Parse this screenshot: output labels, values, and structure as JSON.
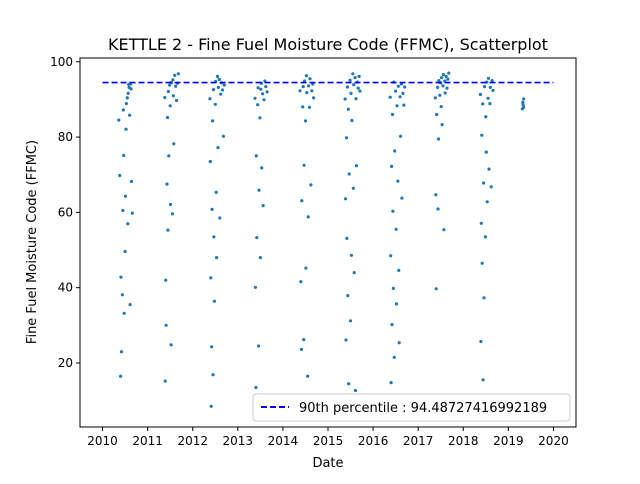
{
  "chart_data": {
    "type": "scatter",
    "title": "KETTLE 2 - Fine Fuel Moisture Code (FFMC), Scatterplot",
    "xlabel": "Date",
    "ylabel": "Fine Fuel Moisture Code (FFMC)",
    "xlim": [
      2009.5,
      2020.5
    ],
    "ylim": [
      3,
      101
    ],
    "x_ticks": [
      2010,
      2011,
      2012,
      2013,
      2014,
      2015,
      2016,
      2017,
      2018,
      2019,
      2020
    ],
    "y_ticks": [
      20,
      40,
      60,
      80,
      100
    ],
    "grid": false,
    "legend_position": "lower-right",
    "colors": {
      "points": "#1f77b4",
      "reference_line": "#0000ff"
    },
    "reference_line": {
      "label": "90th percentile : 94.48727416992189",
      "y": 94.48727416992189,
      "x_range": [
        2010,
        2020
      ],
      "style": "dashed"
    },
    "season_ranges": [
      {
        "year": 2010,
        "start": 2010.35,
        "end": 2010.67
      },
      {
        "year": 2011,
        "start": 2011.38,
        "end": 2011.7
      },
      {
        "year": 2012,
        "start": 2012.38,
        "end": 2012.72
      },
      {
        "year": 2013,
        "start": 2013.38,
        "end": 2013.7
      },
      {
        "year": 2014,
        "start": 2014.38,
        "end": 2014.7
      },
      {
        "year": 2015,
        "start": 2015.38,
        "end": 2015.72
      },
      {
        "year": 2016,
        "start": 2016.38,
        "end": 2016.72
      },
      {
        "year": 2017,
        "start": 2017.38,
        "end": 2017.72
      },
      {
        "year": 2018,
        "start": 2018.38,
        "end": 2018.72
      },
      {
        "year": 2019,
        "start": 2019.3,
        "end": 2019.35
      }
    ],
    "series": [
      {
        "points": [
          [
            2010.36,
            84.5
          ],
          [
            2010.38,
            69.8
          ],
          [
            2010.4,
            16.5
          ],
          [
            2010.41,
            42.8
          ],
          [
            2010.42,
            23.0
          ],
          [
            2010.44,
            38.1
          ],
          [
            2010.45,
            60.5
          ],
          [
            2010.46,
            87.2
          ],
          [
            2010.47,
            75.1
          ],
          [
            2010.48,
            33.2
          ],
          [
            2010.5,
            49.6
          ],
          [
            2010.51,
            64.3
          ],
          [
            2010.52,
            82.1
          ],
          [
            2010.53,
            88.9
          ],
          [
            2010.55,
            90.4
          ],
          [
            2010.56,
            57.0
          ],
          [
            2010.57,
            91.6
          ],
          [
            2010.58,
            94.0
          ],
          [
            2010.59,
            93.2
          ],
          [
            2010.6,
            85.8
          ],
          [
            2010.61,
            35.5
          ],
          [
            2010.62,
            94.1
          ],
          [
            2010.63,
            92.8
          ],
          [
            2010.64,
            68.2
          ],
          [
            2010.66,
            59.8
          ],
          [
            2011.38,
            90.5
          ],
          [
            2011.39,
            15.2
          ],
          [
            2011.4,
            42.0
          ],
          [
            2011.41,
            30.0
          ],
          [
            2011.43,
            67.5
          ],
          [
            2011.44,
            85.2
          ],
          [
            2011.45,
            55.3
          ],
          [
            2011.46,
            92.1
          ],
          [
            2011.47,
            75.0
          ],
          [
            2011.49,
            93.8
          ],
          [
            2011.5,
            88.3
          ],
          [
            2011.51,
            62.1
          ],
          [
            2011.52,
            24.8
          ],
          [
            2011.53,
            94.5
          ],
          [
            2011.55,
            59.6
          ],
          [
            2011.56,
            95.2
          ],
          [
            2011.57,
            91.0
          ],
          [
            2011.58,
            78.2
          ],
          [
            2011.6,
            96.4
          ],
          [
            2011.62,
            93.5
          ],
          [
            2011.64,
            89.7
          ],
          [
            2011.66,
            94.3
          ],
          [
            2011.68,
            96.8
          ],
          [
            2012.38,
            90.2
          ],
          [
            2012.39,
            73.5
          ],
          [
            2012.4,
            42.6
          ],
          [
            2012.41,
            8.5
          ],
          [
            2012.42,
            24.3
          ],
          [
            2012.43,
            60.8
          ],
          [
            2012.44,
            84.3
          ],
          [
            2012.45,
            16.9
          ],
          [
            2012.46,
            92.6
          ],
          [
            2012.47,
            53.5
          ],
          [
            2012.48,
            36.4
          ],
          [
            2012.5,
            88.7
          ],
          [
            2012.51,
            94.8
          ],
          [
            2012.52,
            65.3
          ],
          [
            2012.53,
            48.0
          ],
          [
            2012.55,
            96.1
          ],
          [
            2012.56,
            77.2
          ],
          [
            2012.57,
            93.2
          ],
          [
            2012.59,
            95.3
          ],
          [
            2012.6,
            58.5
          ],
          [
            2012.62,
            91.4
          ],
          [
            2012.64,
            94.4
          ],
          [
            2012.66,
            92.5
          ],
          [
            2012.68,
            80.2
          ],
          [
            2012.7,
            93.8
          ],
          [
            2013.38,
            90.3
          ],
          [
            2013.39,
            40.1
          ],
          [
            2013.4,
            13.5
          ],
          [
            2013.41,
            75.0
          ],
          [
            2013.42,
            53.3
          ],
          [
            2013.44,
            88.6
          ],
          [
            2013.45,
            93.1
          ],
          [
            2013.46,
            24.5
          ],
          [
            2013.47,
            65.9
          ],
          [
            2013.49,
            85.1
          ],
          [
            2013.5,
            48.0
          ],
          [
            2013.51,
            92.7
          ],
          [
            2013.52,
            94.3
          ],
          [
            2013.53,
            71.8
          ],
          [
            2013.55,
            91.5
          ],
          [
            2013.56,
            61.8
          ],
          [
            2013.58,
            89.9
          ],
          [
            2013.6,
            94.9
          ],
          [
            2013.62,
            93.4
          ],
          [
            2013.65,
            92.0
          ],
          [
            2014.38,
            92.3
          ],
          [
            2014.4,
            41.6
          ],
          [
            2014.41,
            23.6
          ],
          [
            2014.42,
            63.1
          ],
          [
            2014.44,
            88.0
          ],
          [
            2014.45,
            93.4
          ],
          [
            2014.46,
            26.2
          ],
          [
            2014.47,
            72.5
          ],
          [
            2014.48,
            94.9
          ],
          [
            2014.5,
            84.3
          ],
          [
            2014.51,
            45.2
          ],
          [
            2014.52,
            96.3
          ],
          [
            2014.53,
            91.8
          ],
          [
            2014.55,
            16.5
          ],
          [
            2014.56,
            58.8
          ],
          [
            2014.57,
            93.6
          ],
          [
            2014.59,
            87.9
          ],
          [
            2014.6,
            95.5
          ],
          [
            2014.62,
            67.3
          ],
          [
            2014.64,
            92.3
          ],
          [
            2014.66,
            94.1
          ],
          [
            2014.68,
            90.4
          ],
          [
            2015.38,
            90.1
          ],
          [
            2015.39,
            63.6
          ],
          [
            2015.4,
            26.1
          ],
          [
            2015.41,
            79.8
          ],
          [
            2015.42,
            53.1
          ],
          [
            2015.43,
            93.3
          ],
          [
            2015.44,
            37.9
          ],
          [
            2015.45,
            87.4
          ],
          [
            2015.46,
            14.5
          ],
          [
            2015.47,
            70.2
          ],
          [
            2015.49,
            95.1
          ],
          [
            2015.5,
            31.2
          ],
          [
            2015.51,
            91.6
          ],
          [
            2015.52,
            48.6
          ],
          [
            2015.53,
            84.4
          ],
          [
            2015.55,
            96.8
          ],
          [
            2015.56,
            66.4
          ],
          [
            2015.57,
            93.9
          ],
          [
            2015.58,
            44.0
          ],
          [
            2015.6,
            95.8
          ],
          [
            2015.61,
            12.7
          ],
          [
            2015.62,
            90.2
          ],
          [
            2015.63,
            72.4
          ],
          [
            2015.65,
            94.6
          ],
          [
            2015.67,
            93.0
          ],
          [
            2015.69,
            96.1
          ],
          [
            2015.71,
            92.2
          ],
          [
            2016.38,
            90.6
          ],
          [
            2016.39,
            48.5
          ],
          [
            2016.4,
            14.8
          ],
          [
            2016.41,
            72.2
          ],
          [
            2016.42,
            30.2
          ],
          [
            2016.43,
            86.0
          ],
          [
            2016.44,
            60.3
          ],
          [
            2016.45,
            39.8
          ],
          [
            2016.46,
            94.6
          ],
          [
            2016.47,
            21.5
          ],
          [
            2016.48,
            76.3
          ],
          [
            2016.5,
            92.2
          ],
          [
            2016.51,
            55.5
          ],
          [
            2016.52,
            35.7
          ],
          [
            2016.53,
            88.3
          ],
          [
            2016.55,
            68.3
          ],
          [
            2016.56,
            93.5
          ],
          [
            2016.57,
            44.6
          ],
          [
            2016.58,
            25.4
          ],
          [
            2016.6,
            90.7
          ],
          [
            2016.61,
            80.2
          ],
          [
            2016.63,
            94.1
          ],
          [
            2016.64,
            63.8
          ],
          [
            2016.66,
            91.6
          ],
          [
            2016.68,
            88.5
          ],
          [
            2016.7,
            93.3
          ],
          [
            2017.38,
            90.4
          ],
          [
            2017.39,
            64.7
          ],
          [
            2017.4,
            39.7
          ],
          [
            2017.41,
            86.0
          ],
          [
            2017.43,
            93.2
          ],
          [
            2017.44,
            60.9
          ],
          [
            2017.45,
            79.5
          ],
          [
            2017.46,
            95.0
          ],
          [
            2017.48,
            91.1
          ],
          [
            2017.5,
            94.4
          ],
          [
            2017.51,
            88.1
          ],
          [
            2017.52,
            95.8
          ],
          [
            2017.53,
            83.3
          ],
          [
            2017.55,
            93.6
          ],
          [
            2017.56,
            96.6
          ],
          [
            2017.57,
            55.4
          ],
          [
            2017.59,
            94.9
          ],
          [
            2017.6,
            91.7
          ],
          [
            2017.62,
            96.1
          ],
          [
            2017.64,
            93.0
          ],
          [
            2017.66,
            95.4
          ],
          [
            2017.68,
            97.0
          ],
          [
            2018.38,
            91.3
          ],
          [
            2018.39,
            25.7
          ],
          [
            2018.4,
            57.1
          ],
          [
            2018.41,
            80.5
          ],
          [
            2018.42,
            46.5
          ],
          [
            2018.43,
            88.8
          ],
          [
            2018.44,
            15.5
          ],
          [
            2018.45,
            67.8
          ],
          [
            2018.46,
            37.3
          ],
          [
            2018.47,
            93.4
          ],
          [
            2018.49,
            53.5
          ],
          [
            2018.5,
            85.4
          ],
          [
            2018.51,
            76.0
          ],
          [
            2018.52,
            94.6
          ],
          [
            2018.53,
            62.8
          ],
          [
            2018.55,
            90.3
          ],
          [
            2018.56,
            95.6
          ],
          [
            2018.57,
            71.5
          ],
          [
            2018.59,
            88.9
          ],
          [
            2018.6,
            93.2
          ],
          [
            2018.62,
            66.8
          ],
          [
            2018.64,
            95.0
          ],
          [
            2018.66,
            92.4
          ],
          [
            2019.31,
            87.5
          ],
          [
            2019.32,
            89.2
          ],
          [
            2019.33,
            88.6
          ],
          [
            2019.34,
            87.9
          ],
          [
            2019.34,
            90.1
          ]
        ]
      }
    ]
  }
}
